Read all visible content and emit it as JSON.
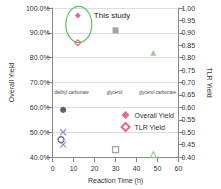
{
  "chart_data": {
    "type": "scatter",
    "xlabel": "Reaction Time (h)",
    "ylabel": "Overall Yield",
    "y2label": "TLR Yield",
    "xlim": [
      0,
      60
    ],
    "xticks": [
      0,
      10,
      20,
      30,
      40,
      50,
      60
    ],
    "ylim": [
      40,
      100
    ],
    "yticks": [
      {
        "value": 40,
        "label": "40.0%"
      },
      {
        "value": 50,
        "label": "50.0%"
      },
      {
        "value": 60,
        "label": "60.0%"
      },
      {
        "value": 70,
        "label": "70.0%"
      },
      {
        "value": 80,
        "label": "80.0%"
      },
      {
        "value": 90,
        "label": "90.0%"
      },
      {
        "value": 100,
        "label": "100.0%"
      }
    ],
    "y2lim": [
      0.4,
      1.0
    ],
    "y2ticks": [
      {
        "value": 0.4,
        "label": "0.40"
      },
      {
        "value": 0.45,
        "label": "0.45"
      },
      {
        "value": 0.5,
        "label": "0.50"
      },
      {
        "value": 0.55,
        "label": "0.55"
      },
      {
        "value": 0.6,
        "label": "0.60"
      },
      {
        "value": 0.65,
        "label": "0.65"
      },
      {
        "value": 0.7,
        "label": "0.70"
      },
      {
        "value": 0.75,
        "label": "0.75"
      },
      {
        "value": 0.8,
        "label": "0.80"
      },
      {
        "value": 0.85,
        "label": "0.85"
      },
      {
        "value": 0.9,
        "label": "0.90"
      },
      {
        "value": 0.95,
        "label": "0.95"
      },
      {
        "value": 1.0,
        "label": "1.00"
      }
    ],
    "grid": true,
    "legend": "lower right",
    "series": [
      {
        "name": "Overall Yield",
        "axis": "y",
        "marker": "filled",
        "color": "#e0457b",
        "x": [
          12,
          30,
          48,
          5,
          5
        ],
        "values": [
          97,
          91,
          82,
          59,
          50
        ],
        "colors": [
          "#e0457b",
          "#8c8c8c",
          "#7cc576",
          "#2d3a5a",
          "#8a6fc0"
        ],
        "markers": [
          "diamond",
          "square",
          "triangle",
          "circle",
          "x"
        ]
      },
      {
        "name": "TLR Yield",
        "axis": "y2",
        "marker": "open",
        "color": "#e0457b",
        "x": [
          12,
          30,
          48,
          4,
          5
        ],
        "values": [
          0.86,
          0.43,
          0.41,
          0.47,
          0.45
        ],
        "colors": [
          "#e0457b",
          "#8c8c8c",
          "#7cc576",
          "#2d3a5a",
          "#8a6fc0"
        ],
        "markers": [
          "diamond",
          "square",
          "triangle",
          "circle",
          "x"
        ]
      }
    ],
    "annotations": [
      {
        "text": "This study",
        "x": 12,
        "y": 97
      }
    ],
    "scheme": [
      "diethyl carbonate",
      "glycerol",
      "glycerol carbonate"
    ]
  }
}
